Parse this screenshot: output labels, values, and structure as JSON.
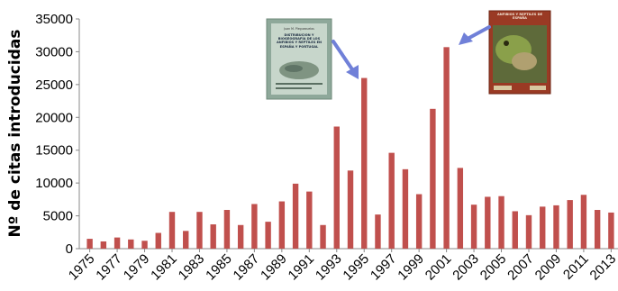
{
  "chart_data": {
    "type": "bar",
    "title": "",
    "xlabel": "",
    "ylabel": "Nº de citas introducidas",
    "ylim": [
      0,
      35000
    ],
    "yticks": [
      0,
      5000,
      10000,
      15000,
      20000,
      25000,
      30000,
      35000
    ],
    "grid": false,
    "legend": "none",
    "bar_color": "#c0504d",
    "categories": [
      "1975",
      "1976",
      "1977",
      "1978",
      "1979",
      "1980",
      "1981",
      "1982",
      "1983",
      "1984",
      "1985",
      "1986",
      "1987",
      "1988",
      "1989",
      "1990",
      "1991",
      "1992",
      "1993",
      "1994",
      "1995",
      "1996",
      "1997",
      "1998",
      "1999",
      "2000",
      "2001",
      "2002",
      "2003",
      "2004",
      "2005",
      "2006",
      "2007",
      "2008",
      "2009",
      "2010",
      "2011",
      "2012",
      "2013"
    ],
    "xtick_labels": [
      "1975",
      "1977",
      "1979",
      "1981",
      "1983",
      "1985",
      "1987",
      "1989",
      "1991",
      "1993",
      "1995",
      "1997",
      "1999",
      "2001",
      "2003",
      "2005",
      "2007",
      "2009",
      "2011",
      "2013"
    ],
    "values": [
      1500,
      1100,
      1700,
      1400,
      1200,
      2400,
      5600,
      2700,
      5600,
      3700,
      5900,
      3600,
      6800,
      4100,
      7200,
      9900,
      8700,
      3600,
      18600,
      11900,
      26000,
      5200,
      14600,
      12100,
      8300,
      21300,
      30700,
      12300,
      6700,
      7900,
      8000,
      5700,
      5100,
      6400,
      6600,
      7400,
      8200,
      5900,
      5500
    ]
  },
  "annotations": {
    "book_1": {
      "author": "Juan M. Pleguezuelos",
      "title": "DISTRIBUCIÓN Y BIOGEOGRAFÍA DE LOS ANFIBIOS Y REPTILES EN ESPAÑA Y PORTUGAL",
      "points_to": "1995",
      "cover_color": "#8ea89a"
    },
    "book_2": {
      "title": "ANFIBIOS Y REPTILES DE ESPAÑA",
      "points_to": "2001",
      "cover_color": "#9a3a24"
    },
    "arrow_color": "#7080d8"
  }
}
